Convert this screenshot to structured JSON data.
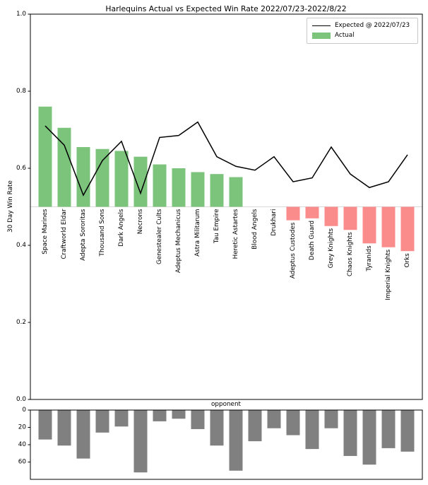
{
  "figure_title": "Harlequins Actual vs Expected Win Rate 2022/07/23-2022/8/22",
  "colors": {
    "actual_above_baseline": "#7cc47c",
    "actual_below_baseline": "#fa8c8c",
    "expected_line": "#000000",
    "games_bars": "#808080",
    "baseline_line": "#d9d9d9",
    "spine": "#000000"
  },
  "chart_data": [
    {
      "type": "bar",
      "title": "Harlequins Actual vs Expected Win Rate 2022/07/23-2022/8/22",
      "xlabel": "opponent",
      "ylabel": "30 Day Win Rate",
      "ylim": [
        0.0,
        1.0
      ],
      "yticks": [
        0.0,
        0.2,
        0.4,
        0.6,
        0.8,
        1.0
      ],
      "bar_baseline": 0.5,
      "grid": "off",
      "legend_position": "upper right",
      "categories": [
        "Space Marines",
        "Craftworld Eldar",
        "Adepta Sororitas",
        "Thousand Sons",
        "Dark Angels",
        "Necrons",
        "Genestealer Cults",
        "Adeptus Mechanicus",
        "Astra Militarum",
        "Tau Empire",
        "Heretic Astartes",
        "Blood Angels",
        "Drukhari",
        "Adeptus Custodes",
        "Death Guard",
        "Grey Knights",
        "Chaos Knights",
        "Tyranids",
        "Imperial Knights",
        "Orks"
      ],
      "series": [
        {
          "name": "Actual",
          "type": "bar",
          "values": [
            0.76,
            0.705,
            0.655,
            0.65,
            0.645,
            0.63,
            0.61,
            0.6,
            0.59,
            0.585,
            0.577,
            0.5,
            0.5,
            0.465,
            0.47,
            0.45,
            0.44,
            0.405,
            0.395,
            0.385
          ]
        },
        {
          "name": "Expected @ 2022/07/23",
          "type": "line",
          "values": [
            0.71,
            0.66,
            0.53,
            0.62,
            0.67,
            0.535,
            0.68,
            0.685,
            0.72,
            0.63,
            0.605,
            0.595,
            0.63,
            0.565,
            0.575,
            0.655,
            0.585,
            0.55,
            0.565,
            0.635
          ]
        }
      ]
    },
    {
      "type": "bar",
      "title": "",
      "xlabel": "",
      "ylabel": "",
      "y_axis_inverted": true,
      "ylim": [
        0,
        80
      ],
      "yticks": [
        0,
        20,
        40,
        60
      ],
      "grid": "off",
      "categories": [
        "Space Marines",
        "Craftworld Eldar",
        "Adepta Sororitas",
        "Thousand Sons",
        "Dark Angels",
        "Necrons",
        "Genestealer Cults",
        "Adeptus Mechanicus",
        "Astra Militarum",
        "Tau Empire",
        "Heretic Astartes",
        "Blood Angels",
        "Drukhari",
        "Adeptus Custodes",
        "Death Guard",
        "Grey Knights",
        "Chaos Knights",
        "Tyranids",
        "Imperial Knights",
        "Orks"
      ],
      "values": [
        34,
        41,
        56,
        26,
        19,
        72,
        13,
        10,
        22,
        41,
        70,
        36,
        21,
        29,
        45,
        21,
        53,
        63,
        44,
        48
      ]
    }
  ]
}
